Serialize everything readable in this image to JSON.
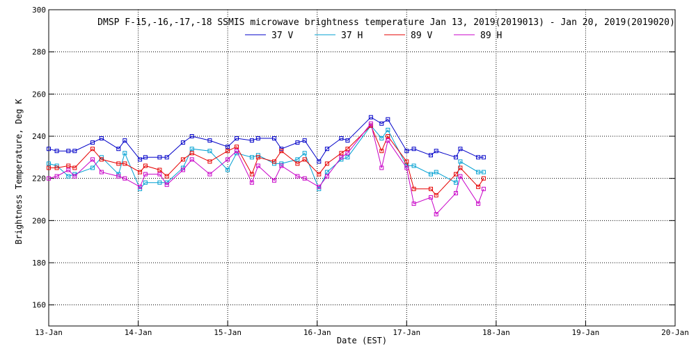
{
  "chart_data": {
    "type": "line",
    "title": "DMSP F-15,-16,-17,-18 SSMIS microwave brightness temperature Jan 13, 2019(2019013) - Jan 20, 2019(2019020)",
    "xlabel": "Date (EST)",
    "ylabel": "Brightness Temperature, Deg K",
    "xlim": [
      0,
      7
    ],
    "ylim": [
      150,
      300
    ],
    "x_ticks": [
      {
        "x": 0,
        "label": "13-Jan"
      },
      {
        "x": 1,
        "label": "14-Jan"
      },
      {
        "x": 2,
        "label": "15-Jan"
      },
      {
        "x": 3,
        "label": "16-Jan"
      },
      {
        "x": 4,
        "label": "17-Jan"
      },
      {
        "x": 5,
        "label": "18-Jan"
      },
      {
        "x": 6,
        "label": "19-Jan"
      },
      {
        "x": 7,
        "label": "20-Jan"
      }
    ],
    "y_ticks": [
      160,
      180,
      200,
      220,
      240,
      260,
      280,
      300
    ],
    "grid": true,
    "legend_position": "top",
    "x_unit_note": "x values in days after 13-Jan 00:00 EST",
    "series": [
      {
        "name": "37 V",
        "color": "#0000c8",
        "x": [
          0.0,
          0.09,
          0.22,
          0.29,
          0.49,
          0.59,
          0.78,
          0.85,
          1.02,
          1.08,
          1.24,
          1.32,
          1.5,
          1.6,
          1.8,
          2.0,
          2.1,
          2.27,
          2.34,
          2.52,
          2.6,
          2.78,
          2.86,
          3.02,
          3.11,
          3.27,
          3.34,
          3.6,
          3.72,
          3.79,
          4.0,
          4.08,
          4.27,
          4.33,
          4.55,
          4.6,
          4.8,
          4.86
        ],
        "y": [
          234,
          233,
          233,
          233,
          237,
          239,
          234,
          238,
          229,
          230,
          230,
          230,
          237,
          240,
          238,
          235,
          239,
          238,
          239,
          239,
          234,
          237,
          238,
          228,
          234,
          239,
          238,
          249,
          246,
          248,
          233,
          234,
          231,
          233,
          230,
          234,
          230,
          230
        ]
      },
      {
        "name": "37 H",
        "color": "#00a0d2",
        "x": [
          0.0,
          0.09,
          0.22,
          0.29,
          0.49,
          0.59,
          0.78,
          0.85,
          1.02,
          1.08,
          1.24,
          1.32,
          1.5,
          1.6,
          1.8,
          2.0,
          2.1,
          2.27,
          2.34,
          2.52,
          2.6,
          2.78,
          2.86,
          3.02,
          3.11,
          3.27,
          3.34,
          3.6,
          3.72,
          3.79,
          4.0,
          4.08,
          4.27,
          4.33,
          4.55,
          4.6,
          4.8,
          4.86
        ],
        "y": [
          227,
          226,
          221,
          222,
          225,
          230,
          222,
          232,
          215,
          218,
          218,
          218,
          225,
          234,
          233,
          224,
          232,
          230,
          231,
          227,
          227,
          229,
          232,
          215,
          223,
          229,
          230,
          245,
          239,
          243,
          226,
          226,
          222,
          223,
          218,
          228,
          223,
          223
        ]
      },
      {
        "name": "89 V",
        "color": "#e60000",
        "x": [
          0.0,
          0.09,
          0.22,
          0.29,
          0.49,
          0.59,
          0.78,
          0.85,
          1.02,
          1.08,
          1.24,
          1.32,
          1.5,
          1.6,
          1.8,
          2.0,
          2.1,
          2.27,
          2.34,
          2.52,
          2.6,
          2.78,
          2.86,
          3.02,
          3.11,
          3.27,
          3.34,
          3.6,
          3.72,
          3.79,
          4.0,
          4.08,
          4.27,
          4.33,
          4.55,
          4.6,
          4.8,
          4.86
        ],
        "y": [
          225,
          225,
          226,
          225,
          234,
          229,
          227,
          227,
          223,
          226,
          224,
          221,
          229,
          232,
          228,
          233,
          235,
          222,
          230,
          228,
          233,
          227,
          229,
          222,
          227,
          232,
          234,
          245,
          233,
          240,
          228,
          215,
          215,
          212,
          222,
          225,
          216,
          220
        ]
      },
      {
        "name": "89 H",
        "color": "#c800c8",
        "x": [
          0.0,
          0.09,
          0.22,
          0.29,
          0.49,
          0.59,
          0.78,
          0.85,
          1.02,
          1.08,
          1.24,
          1.32,
          1.5,
          1.6,
          1.8,
          2.0,
          2.1,
          2.27,
          2.34,
          2.52,
          2.6,
          2.78,
          2.86,
          3.02,
          3.11,
          3.27,
          3.34,
          3.6,
          3.72,
          3.79,
          4.0,
          4.08,
          4.27,
          4.33,
          4.55,
          4.6,
          4.8,
          4.86
        ],
        "y": [
          220,
          221,
          224,
          221,
          229,
          223,
          221,
          220,
          216,
          222,
          222,
          217,
          224,
          229,
          222,
          229,
          233,
          218,
          226,
          219,
          226,
          221,
          220,
          216,
          221,
          230,
          232,
          246,
          225,
          238,
          225,
          208,
          211,
          203,
          213,
          221,
          208,
          215
        ]
      }
    ]
  }
}
